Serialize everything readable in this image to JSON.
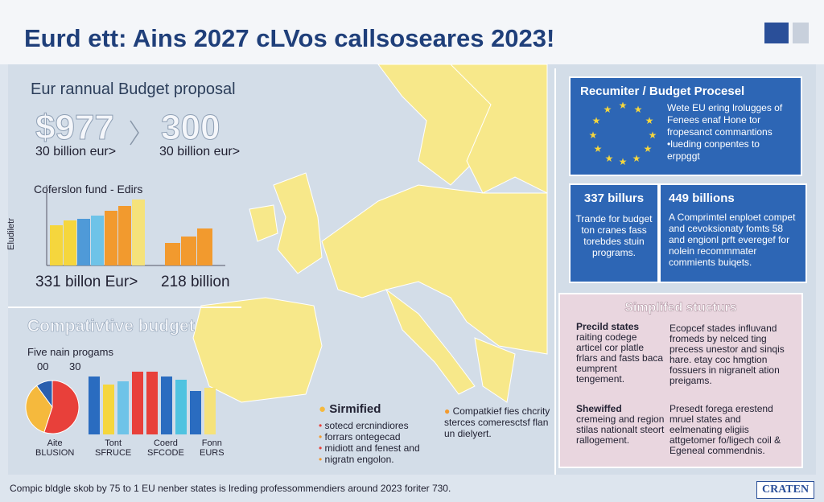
{
  "header": {
    "title": "Eurd ett: Ains 2027 cLVos callsoseares 2023!"
  },
  "left": {
    "heading": "Eur rannual Budget proposal",
    "stat1": "$977",
    "stat2": "300",
    "stat1_sub": "30 billion eur>",
    "stat2_sub": "30 billion eur>",
    "chart_title": "Coferslon fund  - Edirs",
    "axis_label": "Eludiletr",
    "chart_a": {
      "values": [
        50,
        56,
        58,
        62,
        68,
        74,
        82
      ],
      "colors": [
        "#f5d63d",
        "#f5d63d",
        "#4f9ad8",
        "#6ec3e8",
        "#f29a2e",
        "#f29a2e",
        "#f5e27a"
      ]
    },
    "chart_b": {
      "values": [
        28,
        36,
        46
      ],
      "colors": [
        "#f29a2e",
        "#f29a2e",
        "#f29a2e"
      ]
    },
    "total1": "331 billon Eur>",
    "total2": "218 billion"
  },
  "compare": {
    "heading": "Compativtive budget",
    "subheading": "Five nain progams",
    "num1": "00",
    "num2": "30",
    "pie": {
      "values": [
        55,
        35,
        10
      ],
      "colors": [
        "#e8403a",
        "#f5b93d",
        "#2a5fae"
      ]
    },
    "bars": {
      "values": [
        72,
        62,
        66,
        78,
        78,
        72,
        68,
        54,
        58
      ],
      "colors": [
        "#2a6cc0",
        "#f5d63d",
        "#6ec3e8",
        "#e8403a",
        "#e8403a",
        "#2a6cc0",
        "#4fc3e0",
        "#2a6cc0",
        "#f5e27a"
      ]
    },
    "labels": [
      [
        "Aite",
        "BLUSION"
      ],
      [
        "Tont",
        "SFRUCE"
      ],
      [
        "Coerd",
        "SFCODE"
      ],
      [
        "Fonn",
        "EURS"
      ]
    ]
  },
  "middle": {
    "heading": "Sirmified",
    "bullets": [
      "sotecd ercnindiores",
      "forrars ontegecad",
      "midiott and fenest and",
      "nigratn engolon."
    ],
    "col2": "Compatkief fies chcrity sterces comeresctsf flan un dielyert."
  },
  "proposal": {
    "title": "Recumiter / Budget Procesel",
    "text": "Wete EU ering lrolugges of Fenees enaf Hone tor fropesanct commantions •lueding conpentes to erppggt"
  },
  "stats": [
    {
      "value": "337 billurs",
      "text": "Trande for budget ton cranes fass torebdes stuin programs."
    },
    {
      "value": "449 billions",
      "text": "A Comprimtel enploet compet and cevoksionaty fomts 58 and engionl prft everegef for nolein recommmater commients buiqets."
    }
  ],
  "structure": {
    "title": "Simplifed stucturs",
    "cells": [
      {
        "heading": "Precild states",
        "text": "raiting codege articel cor platle frlars and fasts baca eumprent tengement."
      },
      {
        "text": "Ecopcef stades influvand fromeds by nelced ting precess unestor and sinqis hare. etay coc hmgtion fossuers in nigranelt ation preigams."
      },
      {
        "heading": "Shewiffed",
        "text": "cremeing and region stilas nationalt steort rallogement."
      },
      {
        "text": "Presedt forega erestend mruel states and eelmenating eligiis attgetomer fo/ligech coil & Egeneal commendnis."
      }
    ]
  },
  "footer": {
    "note": "Compic bldgle skob by 75 to 1 EU nenber states is lreding professommendiers around 2023 foriter 730.",
    "badge": "CRATEN"
  }
}
